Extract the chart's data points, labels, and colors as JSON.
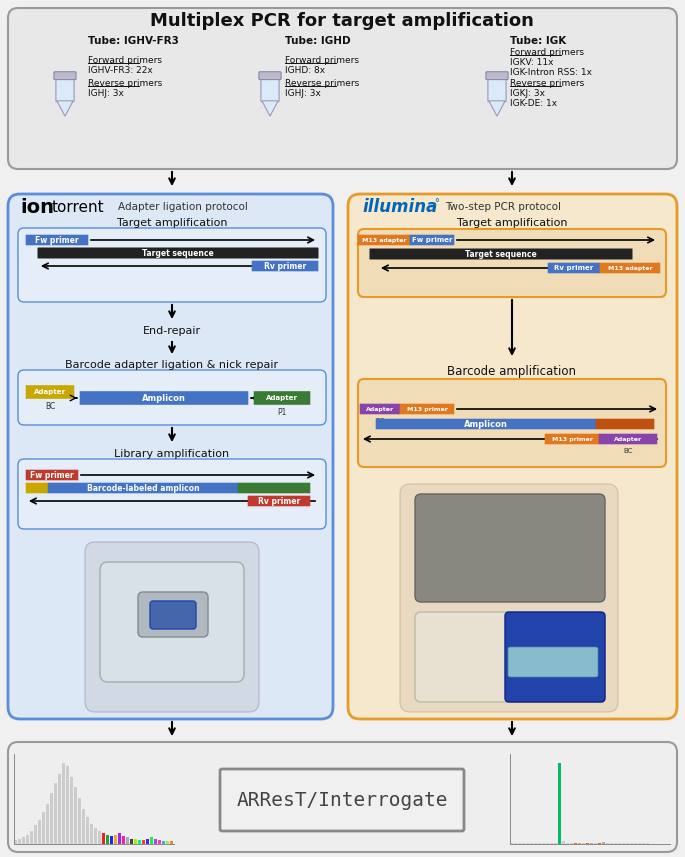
{
  "title": "Multiplex PCR for target amplification",
  "bg_color": "#f0f0f0",
  "top_box_bg": "#e8e8e8",
  "top_box_border": "#999999",
  "left_box_bg": "#dce8f5",
  "left_box_border": "#5b8dd9",
  "right_box_bg": "#f5e8cc",
  "right_box_border": "#e69a28",
  "bottom_box_bg": "#eeeeee",
  "bottom_box_border": "#999999",
  "illumina_color": "#0066bb",
  "tube1_label": "Tube: IGHV-FR3",
  "tube2_label": "Tube: IGHD",
  "tube3_label": "Tube: IGK",
  "fw1_label": "Forward primers",
  "fw1_detail": "IGHV-FR3: 22x",
  "rv1_label": "Reverse primers",
  "rv1_detail": "IGHJ: 3x",
  "fw2_label": "Forward primers",
  "fw2_detail": "IGHD: 8x",
  "rv2_label": "Reverse primers",
  "rv2_detail": "IGHJ: 3x",
  "fw3_label": "Forward primers",
  "fw3_detail1": "IGKV: 11x",
  "fw3_detail2": "IGK-Intron RSS: 1x",
  "rv3_label": "Reverse primers",
  "rv3_detail1": "IGKJ: 3x",
  "rv3_detail2": "IGK-DE: 1x",
  "left_protocol": "Adapter ligation protocol",
  "right_protocol": "Two-step PCR protocol",
  "target_amp": "Target amplification",
  "end_repair": "End-repair",
  "barcode_ligation": "Barcode adapter ligation & nick repair",
  "lib_amp": "Library amplification",
  "barcode_amp": "Barcode amplification",
  "arrest_label": "ARResT/Interrogate",
  "fw_primer_color": "#4472c4",
  "target_seq_color": "#222222",
  "adapter_yellow": "#c8a800",
  "adapter_green": "#3a7a35",
  "amplicon_blue": "#4472c4",
  "fw_primer_red": "#c0392b",
  "m13_orange": "#e07820",
  "m13_adapter_purple": "#8844aa",
  "adapter_illumina_right": "#c05010",
  "inner_box_bg_left": "#e4edf8",
  "inner_box_bg_right": "#f0ddb8"
}
